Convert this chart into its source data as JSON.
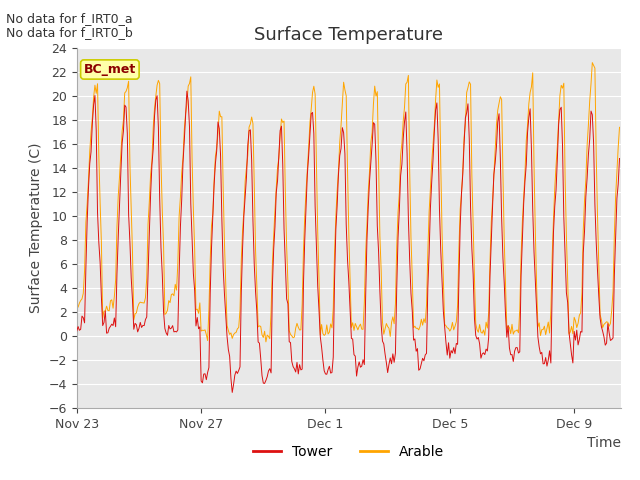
{
  "title": "Surface Temperature",
  "xlabel": "Time",
  "ylabel": "Surface Temperature (C)",
  "ylim": [
    -6,
    24
  ],
  "yticks": [
    -6,
    -4,
    -2,
    0,
    2,
    4,
    6,
    8,
    10,
    12,
    14,
    16,
    18,
    20,
    22,
    24
  ],
  "xtick_labels": [
    "Nov 23",
    "Nov 27",
    "Dec 1",
    "Dec 5",
    "Dec 9"
  ],
  "xtick_positions": [
    0,
    4,
    8,
    12,
    16
  ],
  "xlim": [
    0,
    17.5
  ],
  "tower_color": "#DD1111",
  "arable_color": "#FFA500",
  "fig_bg_color": "#FFFFFF",
  "plot_bg_color": "#E8E8E8",
  "grid_color": "#FFFFFF",
  "annotation_text1": "No data for f_IRT0_a",
  "annotation_text2": "No data for f_IRT0_b",
  "bc_met_label": "BC_met",
  "legend_items": [
    "Tower",
    "Arable"
  ],
  "title_fontsize": 13,
  "axis_fontsize": 10,
  "tick_fontsize": 9,
  "annotation_fontsize": 9,
  "bc_met_fontsize": 9
}
